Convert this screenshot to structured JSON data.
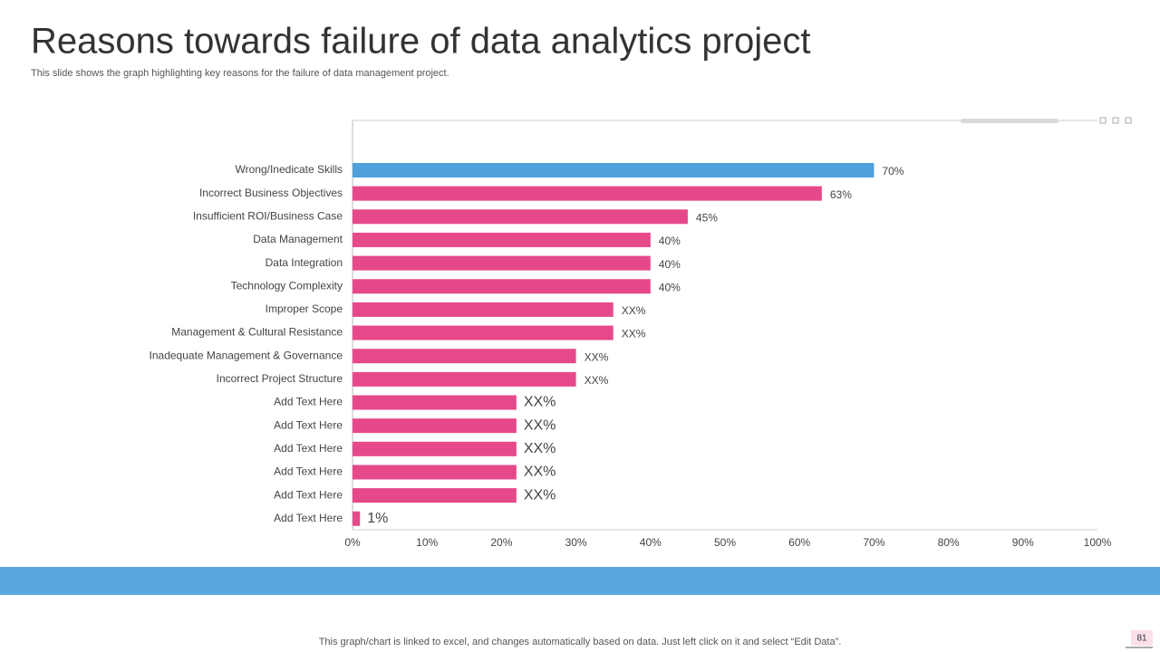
{
  "title": "Reasons towards failure of data analytics project",
  "subtitle": "This slide shows the graph highlighting key reasons for the failure of data management project.",
  "footer": "This graph/chart is linked to excel,  and changes automatically based on data. Just left click on it and select “Edit Data”.",
  "page_number": "81",
  "chart_data": {
    "type": "barh",
    "categories": [
      "Wrong/Inedicate Skills",
      "Incorrect Business Objectives",
      "Insufficient ROI/Business Case",
      "Data Management ",
      "Data Integration",
      "Technology Complexity",
      "Improper Scope",
      "Management & Cultural Resistance",
      "Inadequate Management & Governance",
      "Incorrect Project Structure",
      "Add Text Here",
      "Add Text Here",
      "Add Text Here",
      "Add Text Here",
      "Add Text Here",
      "Add Text Here"
    ],
    "values": [
      70,
      63,
      45,
      40,
      40,
      40,
      35,
      35,
      30,
      30,
      22,
      22,
      22,
      22,
      22,
      1
    ],
    "value_labels": [
      "70%",
      "63%",
      "45%",
      "40%",
      "40%",
      "40%",
      "XX%",
      "XX%",
      "XX%",
      "XX%",
      "XX%",
      "XX%",
      "XX%",
      "XX%",
      "XX%",
      "1%"
    ],
    "colors": [
      "#4f9fdb",
      "#e6498a",
      "#e6498a",
      "#e6498a",
      "#e6498a",
      "#e6498a",
      "#e6498a",
      "#e6498a",
      "#e6498a",
      "#e6498a",
      "#e6498a",
      "#e6498a",
      "#e6498a",
      "#e6498a",
      "#e6498a",
      "#e6498a"
    ],
    "xlim": [
      0,
      100
    ],
    "xticks": [
      {
        "value": 0,
        "label": "0%"
      },
      {
        "value": 10,
        "label": "10%"
      },
      {
        "value": 20,
        "label": "20%"
      },
      {
        "value": 30,
        "label": "30%"
      },
      {
        "value": 40,
        "label": "40%"
      },
      {
        "value": 50,
        "label": "50%"
      },
      {
        "value": 60,
        "label": "60%"
      },
      {
        "value": 70,
        "label": "70%"
      },
      {
        "value": 80,
        "label": "80%"
      },
      {
        "value": 90,
        "label": "90%"
      },
      {
        "value": 100,
        "label": "100%"
      }
    ]
  }
}
